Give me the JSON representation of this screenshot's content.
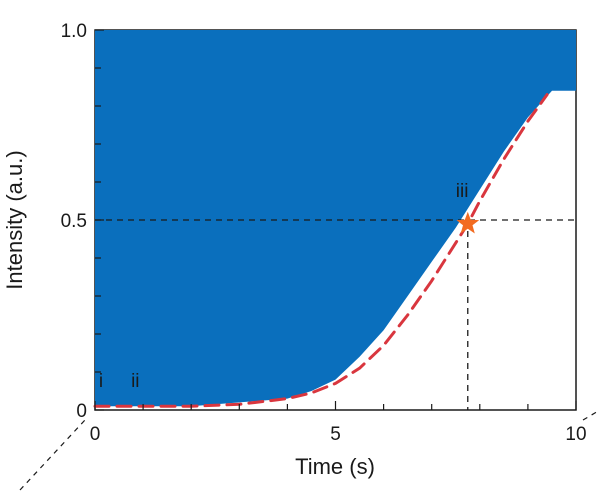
{
  "chart_data": {
    "type": "area",
    "xlabel": "Time (s)",
    "ylabel": "Intensity (a.u.)",
    "xlim": [
      0,
      10
    ],
    "ylim": [
      0,
      1.0
    ],
    "x_ticks": [
      0,
      5,
      10
    ],
    "x_tick_labels": [
      "0",
      "5",
      "10"
    ],
    "y_ticks": [
      0,
      0.5,
      1.0
    ],
    "y_tick_labels": [
      "0",
      "0.5",
      "1.0"
    ],
    "grid": false,
    "colors": {
      "fill": "#0a6fbd",
      "fit_curve": "#d9363e",
      "marker": "#f26b21",
      "guide": "#1a1a1a"
    },
    "series": [
      {
        "kind": "shaded-region",
        "x": [
          0.0,
          1.0,
          2.0,
          3.0,
          4.0,
          4.5,
          5.0,
          5.5,
          6.0,
          6.5,
          7.0,
          7.5,
          8.0,
          8.5,
          9.0,
          9.5,
          10.0
        ],
        "lower": [
          0.01,
          0.01,
          0.01,
          0.02,
          0.03,
          0.05,
          0.08,
          0.14,
          0.21,
          0.3,
          0.39,
          0.48,
          0.58,
          0.68,
          0.77,
          0.84,
          0.84
        ],
        "upper": [
          1.0,
          1.0,
          1.0,
          1.0,
          1.0,
          1.0,
          1.0,
          1.0,
          1.0,
          1.0,
          1.0,
          1.0,
          1.0,
          1.0,
          1.0,
          1.0,
          1.0
        ]
      },
      {
        "kind": "dashed-fit",
        "x": [
          0.0,
          1.0,
          2.0,
          3.0,
          4.0,
          4.5,
          5.0,
          5.5,
          6.0,
          6.5,
          7.0,
          7.5,
          7.75,
          8.0,
          8.5,
          9.0,
          9.4
        ],
        "y": [
          0.01,
          0.01,
          0.01,
          0.015,
          0.03,
          0.045,
          0.07,
          0.11,
          0.17,
          0.25,
          0.34,
          0.44,
          0.49,
          0.55,
          0.66,
          0.76,
          0.83
        ]
      }
    ],
    "marker": {
      "x": 7.75,
      "y": 0.49,
      "shape": "star"
    },
    "guides": {
      "x": 7.75,
      "y": 0.5
    },
    "annotations": [
      {
        "text": "i",
        "x": 0.08,
        "y": 0.06
      },
      {
        "text": "ii",
        "x": 0.75,
        "y": 0.06
      },
      {
        "text": "iii",
        "x": 7.5,
        "y": 0.56
      }
    ]
  }
}
